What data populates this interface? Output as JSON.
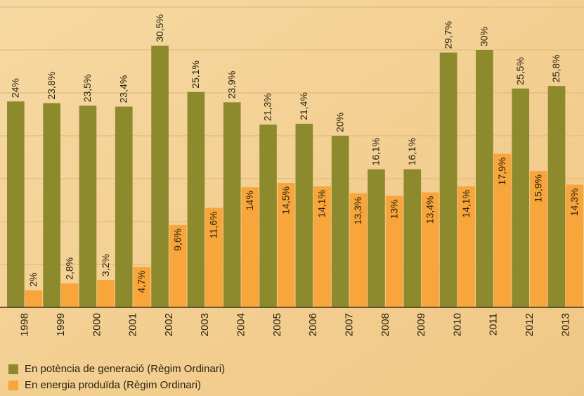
{
  "chart_data": {
    "type": "bar",
    "categories": [
      "1998",
      "1999",
      "2000",
      "2001",
      "2002",
      "2003",
      "2004",
      "2005",
      "2006",
      "2007",
      "2008",
      "2009",
      "2010",
      "2011",
      "2012",
      "2013"
    ],
    "series": [
      {
        "name": "En potència de generació (Règim Ordinari)",
        "color": "#8c8a2c",
        "values": [
          24,
          23.8,
          23.5,
          23.4,
          30.5,
          25.1,
          23.9,
          21.3,
          21.4,
          20,
          16.1,
          16.1,
          29.7,
          30,
          25.5,
          25.8
        ],
        "value_labels": [
          "24%",
          "23,8%",
          "23,5%",
          "23,4%",
          "30,5%",
          "25,1%",
          "23,9%",
          "21,3%",
          "21,4%",
          "20%",
          "16,1%",
          "16,1%",
          "29,7%",
          "30%",
          "25,5%",
          "25,8%"
        ]
      },
      {
        "name": "En energia produïda (Règim Ordinari)",
        "color": "#f8a53b",
        "values": [
          2,
          2.8,
          3.2,
          4.7,
          9.6,
          11.6,
          14,
          14.5,
          14.1,
          13.3,
          13,
          13.4,
          14.1,
          17.9,
          15.9,
          14.3
        ],
        "value_labels": [
          "2%",
          "2,8%",
          "3,2%",
          "4,7%",
          "9,6%",
          "11,6%",
          "14%",
          "14,5%",
          "14,1%",
          "13,3%",
          "13%",
          "13,4%",
          "14,1%",
          "17,9%",
          "15,9%",
          "14,3%"
        ]
      }
    ],
    "ylim": [
      0,
      35
    ],
    "yticks": [
      0,
      5,
      10,
      15,
      20,
      25,
      30,
      35
    ],
    "grid": true
  }
}
